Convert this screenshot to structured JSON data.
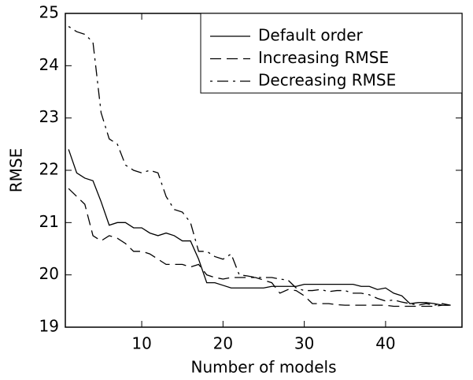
{
  "chart_data": {
    "type": "line",
    "x_label": "Number of models",
    "y_label": "RMSE",
    "x": [
      1,
      2,
      3,
      4,
      5,
      6,
      7,
      8,
      9,
      10,
      11,
      12,
      13,
      14,
      15,
      16,
      17,
      18,
      19,
      20,
      21,
      22,
      23,
      24,
      25,
      26,
      27,
      28,
      29,
      30,
      31,
      32,
      33,
      34,
      35,
      36,
      37,
      38,
      39,
      40,
      41,
      42,
      43,
      44,
      45,
      46,
      47,
      48
    ],
    "xlim": [
      0.6,
      49.4
    ],
    "ylim": [
      19,
      25
    ],
    "xticks": [
      10,
      20,
      30,
      40
    ],
    "yticks": [
      19,
      20,
      21,
      22,
      23,
      24,
      25
    ],
    "legend": "upper right",
    "series": [
      {
        "name": "Default order",
        "color": "#000000",
        "dash": "solid",
        "values": [
          22.4,
          21.95,
          21.85,
          21.8,
          21.4,
          20.95,
          21.0,
          21.0,
          20.9,
          20.9,
          20.8,
          20.75,
          20.8,
          20.75,
          20.65,
          20.65,
          20.3,
          19.85,
          19.85,
          19.8,
          19.75,
          19.75,
          19.75,
          19.75,
          19.75,
          19.78,
          19.78,
          19.78,
          19.78,
          19.82,
          19.82,
          19.82,
          19.82,
          19.82,
          19.82,
          19.82,
          19.78,
          19.78,
          19.72,
          19.75,
          19.65,
          19.6,
          19.45,
          19.47,
          19.47,
          19.45,
          19.42,
          19.42
        ]
      },
      {
        "name": "Increasing RMSE",
        "color": "#000000",
        "dash": "dashed",
        "values": [
          21.65,
          21.5,
          21.35,
          20.75,
          20.65,
          20.75,
          20.7,
          20.6,
          20.45,
          20.45,
          20.4,
          20.3,
          20.2,
          20.2,
          20.2,
          20.15,
          20.2,
          20.0,
          19.95,
          19.92,
          19.95,
          19.95,
          19.95,
          19.95,
          19.9,
          19.85,
          19.65,
          19.72,
          19.7,
          19.6,
          19.45,
          19.45,
          19.45,
          19.43,
          19.42,
          19.42,
          19.42,
          19.42,
          19.42,
          19.42,
          19.4,
          19.4,
          19.4,
          19.4,
          19.4,
          19.4,
          19.42,
          19.42
        ]
      },
      {
        "name": "Decreasing RMSE",
        "color": "#000000",
        "dash": "dashdot",
        "values": [
          24.75,
          24.65,
          24.6,
          24.45,
          23.1,
          22.6,
          22.5,
          22.1,
          22.0,
          21.95,
          22.0,
          21.95,
          21.5,
          21.25,
          21.2,
          21.0,
          20.45,
          20.45,
          20.35,
          20.3,
          20.4,
          20.0,
          19.98,
          19.95,
          19.95,
          19.95,
          19.92,
          19.9,
          19.75,
          19.7,
          19.7,
          19.72,
          19.68,
          19.7,
          19.7,
          19.65,
          19.65,
          19.62,
          19.55,
          19.5,
          19.52,
          19.48,
          19.45,
          19.42,
          19.45,
          19.42,
          19.45,
          19.42
        ]
      }
    ]
  }
}
